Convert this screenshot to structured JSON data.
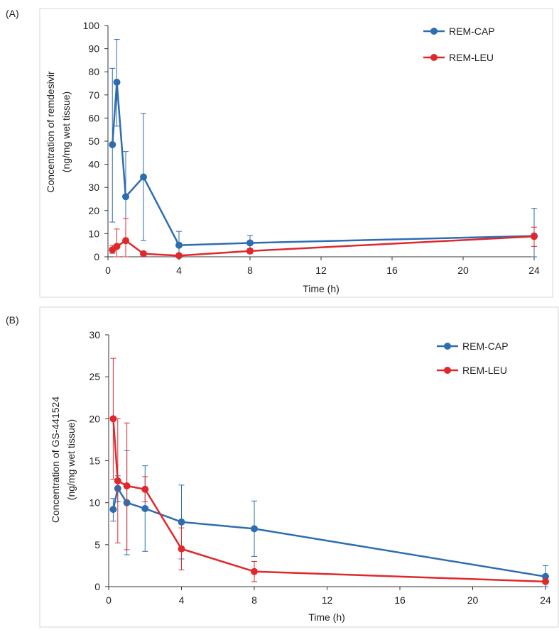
{
  "colors": {
    "blue": "#2e6db0",
    "red": "#e0282c",
    "frame": "#d6d6d6",
    "axis": "#333333",
    "text": "#222222"
  },
  "chart_data": [
    {
      "panel_label": "(A)",
      "type": "line",
      "ylabel_line1": "Concentration of remdesivir",
      "ylabel_line2": "(ng/mg wet tissue)",
      "xlabel": "Time (h)",
      "xlim": [
        0,
        24
      ],
      "ylim": [
        0,
        100
      ],
      "xticks": [
        "0",
        "4",
        "8",
        "12",
        "16",
        "20",
        "24"
      ],
      "yticks": [
        "0",
        "10",
        "20",
        "30",
        "40",
        "50",
        "60",
        "70",
        "80",
        "90",
        "100"
      ],
      "legend_position": "top-right",
      "series": [
        {
          "name": "REM-CAP",
          "color": "#2e6db0",
          "x": [
            0.25,
            0.5,
            1,
            2,
            4,
            8,
            24
          ],
          "y": [
            48.5,
            75.5,
            26,
            34.5,
            5,
            6,
            9
          ],
          "err_up": [
            33,
            18.5,
            19.5,
            27.5,
            6,
            3.2,
            12
          ],
          "err_down": [
            33.5,
            19,
            19.5,
            27.5,
            5,
            3,
            9
          ]
        },
        {
          "name": "REM-LEU",
          "color": "#e0282c",
          "x": [
            0.25,
            0.5,
            1,
            2,
            4,
            8,
            24
          ],
          "y": [
            3,
            4.5,
            7,
            1.3,
            0.5,
            2.5,
            8.8
          ],
          "err_up": [
            2,
            7.5,
            9.5,
            0.5,
            0.3,
            1,
            4
          ],
          "err_down": [
            1.5,
            4.5,
            7,
            0.5,
            0.3,
            1,
            4.3
          ]
        }
      ]
    },
    {
      "panel_label": "(B)",
      "type": "line",
      "ylabel_line1": "Concentration of GS-441524",
      "ylabel_line2": "(ng/mg wet tissue)",
      "xlabel": "Time (h)",
      "xlim": [
        0,
        24
      ],
      "ylim": [
        0,
        30
      ],
      "xticks": [
        "0",
        "4",
        "8",
        "12",
        "16",
        "20",
        "24"
      ],
      "yticks": [
        "0",
        "5",
        "10",
        "15",
        "20",
        "25",
        "30"
      ],
      "legend_position": "top-right",
      "series": [
        {
          "name": "REM-CAP",
          "color": "#2e6db0",
          "x": [
            0.25,
            0.5,
            1,
            2,
            4,
            8,
            24
          ],
          "y": [
            9.2,
            11.7,
            10,
            9.3,
            7.7,
            6.9,
            1.2
          ],
          "err_up": [
            1.3,
            1.5,
            6.2,
            5.1,
            4.4,
            3.3,
            1.3
          ],
          "err_down": [
            1.4,
            1.6,
            6.2,
            5.1,
            4.4,
            3.3,
            1.2
          ]
        },
        {
          "name": "REM-LEU",
          "color": "#e0282c",
          "x": [
            0.25,
            0.5,
            1,
            2,
            4,
            8,
            24
          ],
          "y": [
            20,
            12.6,
            12,
            11.6,
            4.5,
            1.8,
            0.6
          ],
          "err_up": [
            7.2,
            7.4,
            7.5,
            1.5,
            2.5,
            1.2,
            0.1
          ],
          "err_down": [
            7.2,
            7.4,
            7.6,
            1.5,
            2.5,
            1.2,
            0.1
          ]
        }
      ]
    }
  ]
}
